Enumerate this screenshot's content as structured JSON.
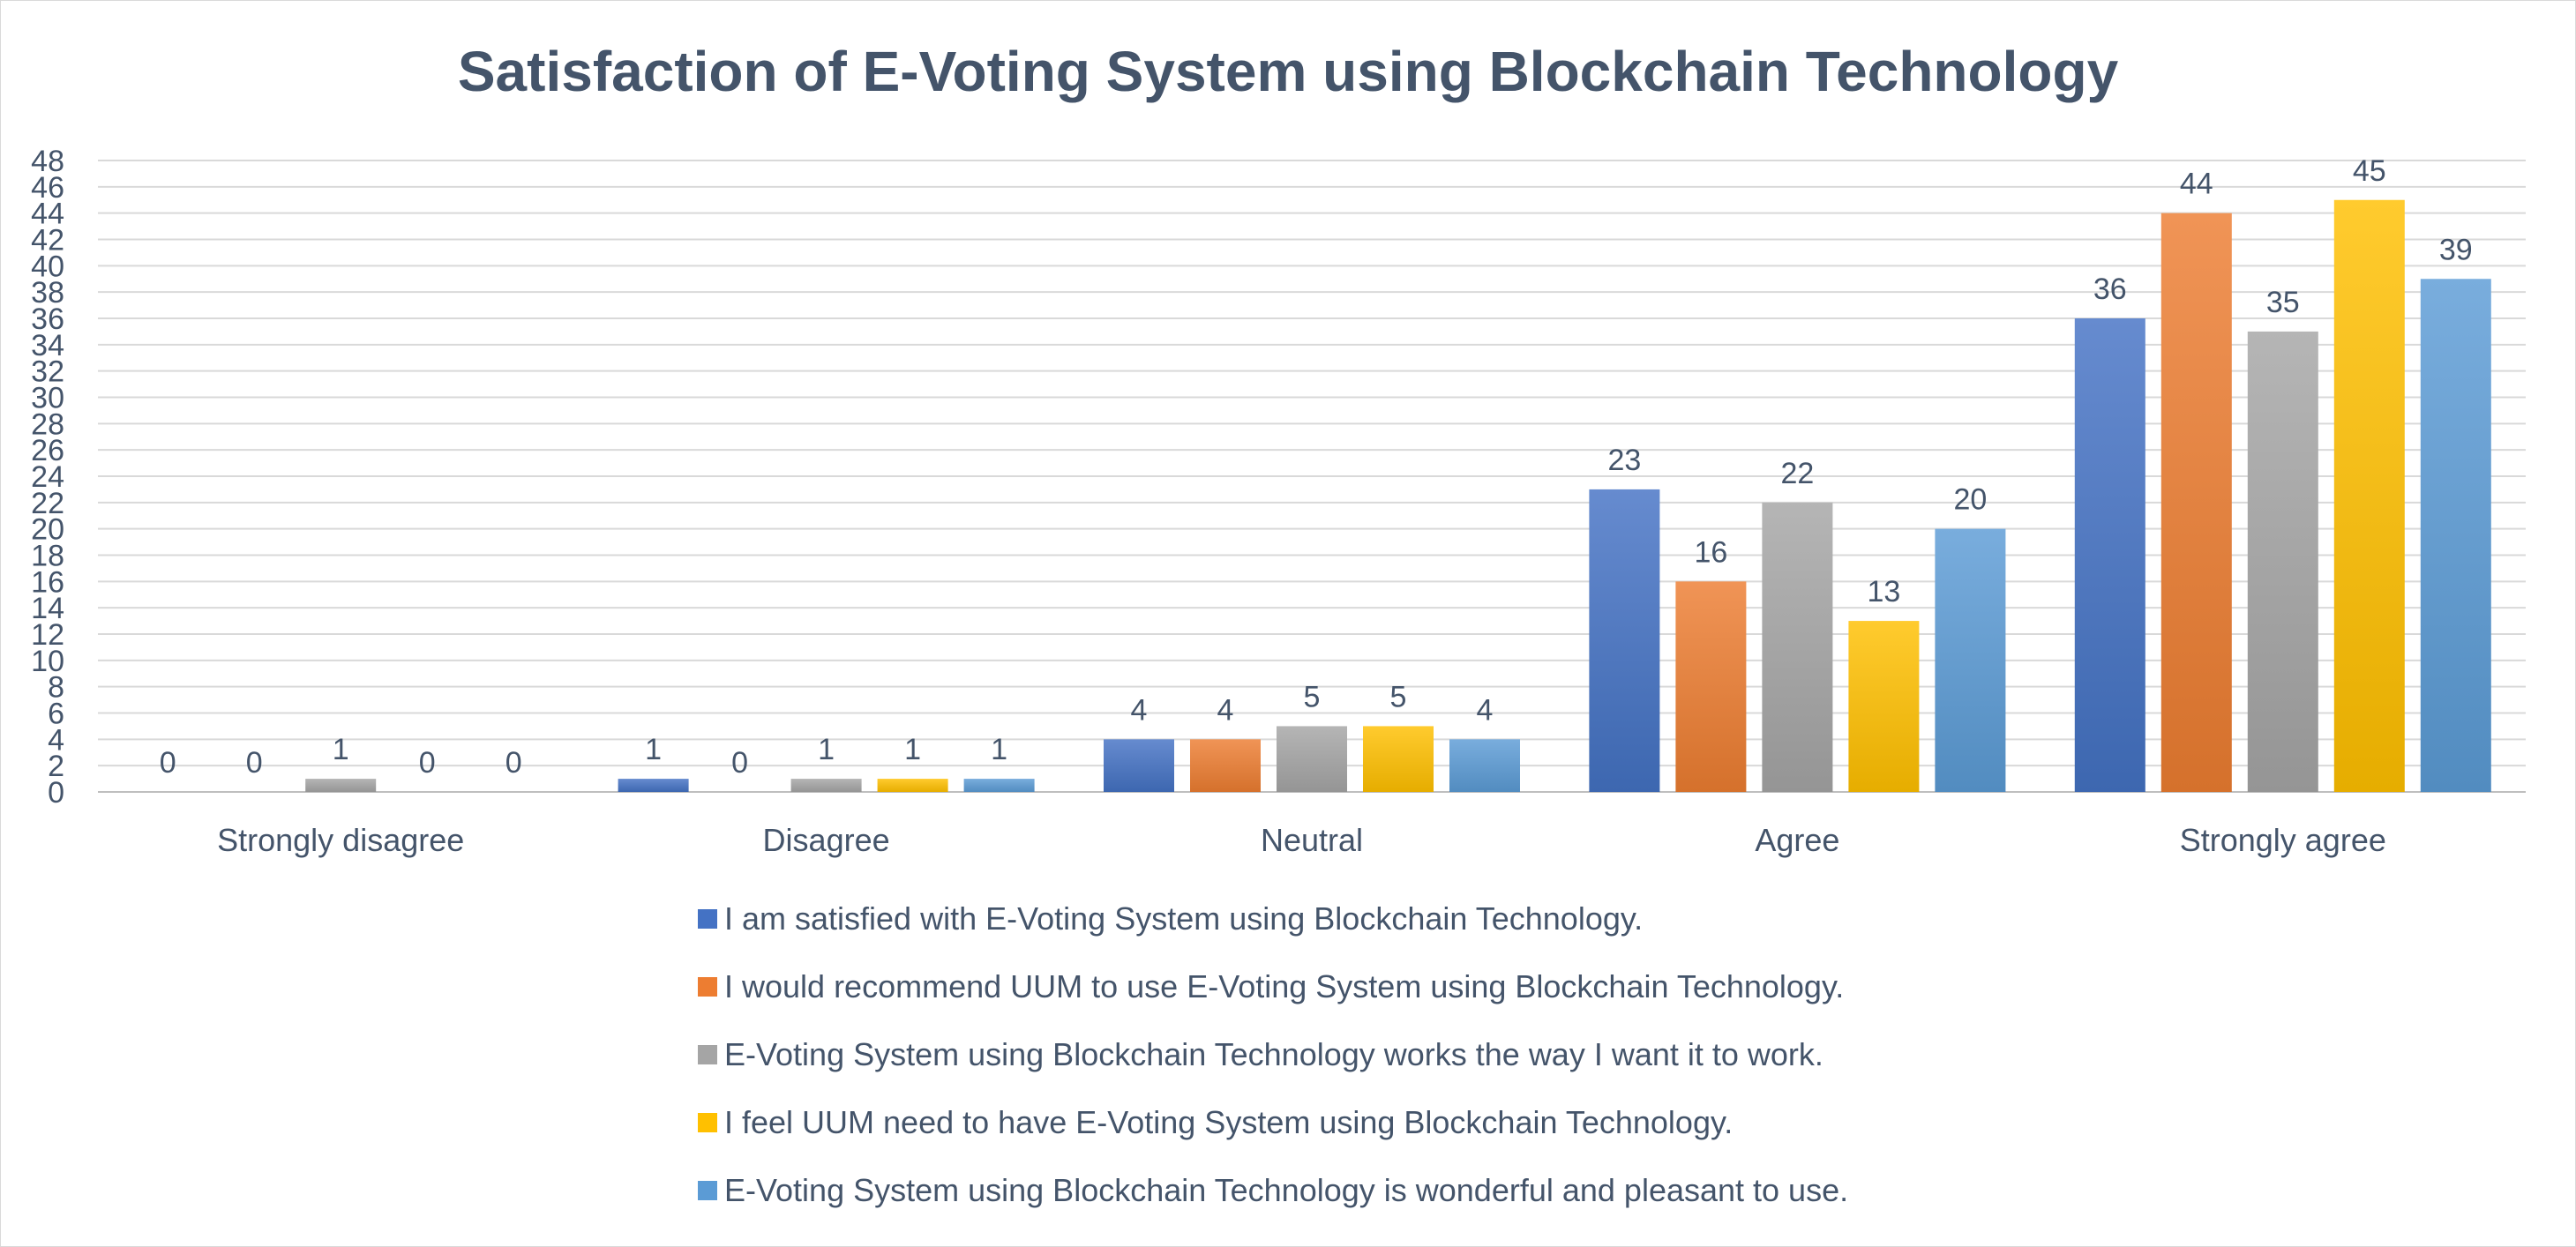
{
  "chart_data": {
    "type": "bar",
    "title": "Satisfaction of E-Voting System using Blockchain Technology",
    "xlabel": "",
    "ylabel": "",
    "ylim": [
      0,
      48
    ],
    "ytick_step": 2,
    "grid": true,
    "legend_position": "bottom",
    "data_labels": true,
    "categories": [
      "Strongly disagree",
      "Disagree",
      "Neutral",
      "Agree",
      "Strongly agree"
    ],
    "series": [
      {
        "name": "I am satisfied with E-Voting System using Blockchain Technology.",
        "color": "#4472c4",
        "values": [
          0,
          1,
          4,
          23,
          36
        ]
      },
      {
        "name": "I would recommend UUM to use E-Voting System using Blockchain Technology.",
        "color": "#ed7d31",
        "values": [
          0,
          0,
          4,
          16,
          44
        ]
      },
      {
        "name": "E-Voting System using Blockchain Technology works the way I want it to work.",
        "color": "#a5a5a5",
        "values": [
          1,
          1,
          5,
          22,
          35
        ]
      },
      {
        "name": "I feel UUM need to have E-Voting System using Blockchain Technology.",
        "color": "#ffc000",
        "values": [
          0,
          1,
          5,
          13,
          45
        ]
      },
      {
        "name": "E-Voting System using Blockchain Technology is wonderful and pleasant to use.",
        "color": "#5b9bd5",
        "values": [
          0,
          1,
          4,
          20,
          39
        ]
      }
    ]
  }
}
